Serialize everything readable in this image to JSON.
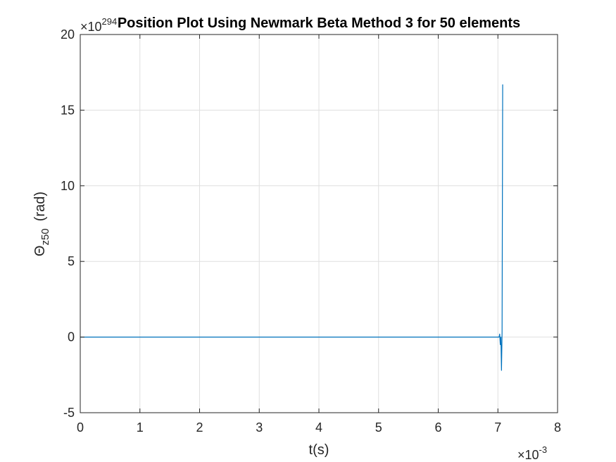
{
  "chart_data": {
    "type": "line",
    "title": "Position Plot Using Newmark Beta Method 3 for 50 elements",
    "xlabel": "t(s)",
    "ylabel": {
      "symbol": "Θ",
      "subscript": "z50",
      "unit": "(rad)"
    },
    "x_multiplier": {
      "prefix": "×10",
      "exponent": "-3",
      "value": 0.001
    },
    "y_multiplier": {
      "prefix": "×10",
      "exponent": "294",
      "value": 1e+294
    },
    "xlim": [
      0,
      0.008
    ],
    "ylim": [
      -5e+294,
      2e+295
    ],
    "x_ticks": [
      0,
      1,
      2,
      3,
      4,
      5,
      6,
      7,
      8
    ],
    "y_ticks": [
      -5,
      0,
      5,
      10,
      15,
      20
    ],
    "grid": true,
    "legend": false,
    "series": [
      {
        "color": "#0072BD",
        "x": [
          0,
          0.001,
          0.002,
          0.003,
          0.004,
          0.005,
          0.006,
          0.007,
          0.00702,
          0.00703,
          0.00704,
          0.00705,
          0.00706,
          0.00707,
          0.00708
        ],
        "y": [
          0,
          0,
          0,
          0,
          0,
          0,
          0,
          0,
          0,
          2e+293,
          -5e+293,
          0,
          -2.2e+294,
          3e+293,
          1.67e+295
        ]
      }
    ],
    "colors": {
      "line": "#0072BD",
      "grid": "#dfdfdf",
      "axis": "#262626",
      "background": "#ffffff"
    }
  }
}
